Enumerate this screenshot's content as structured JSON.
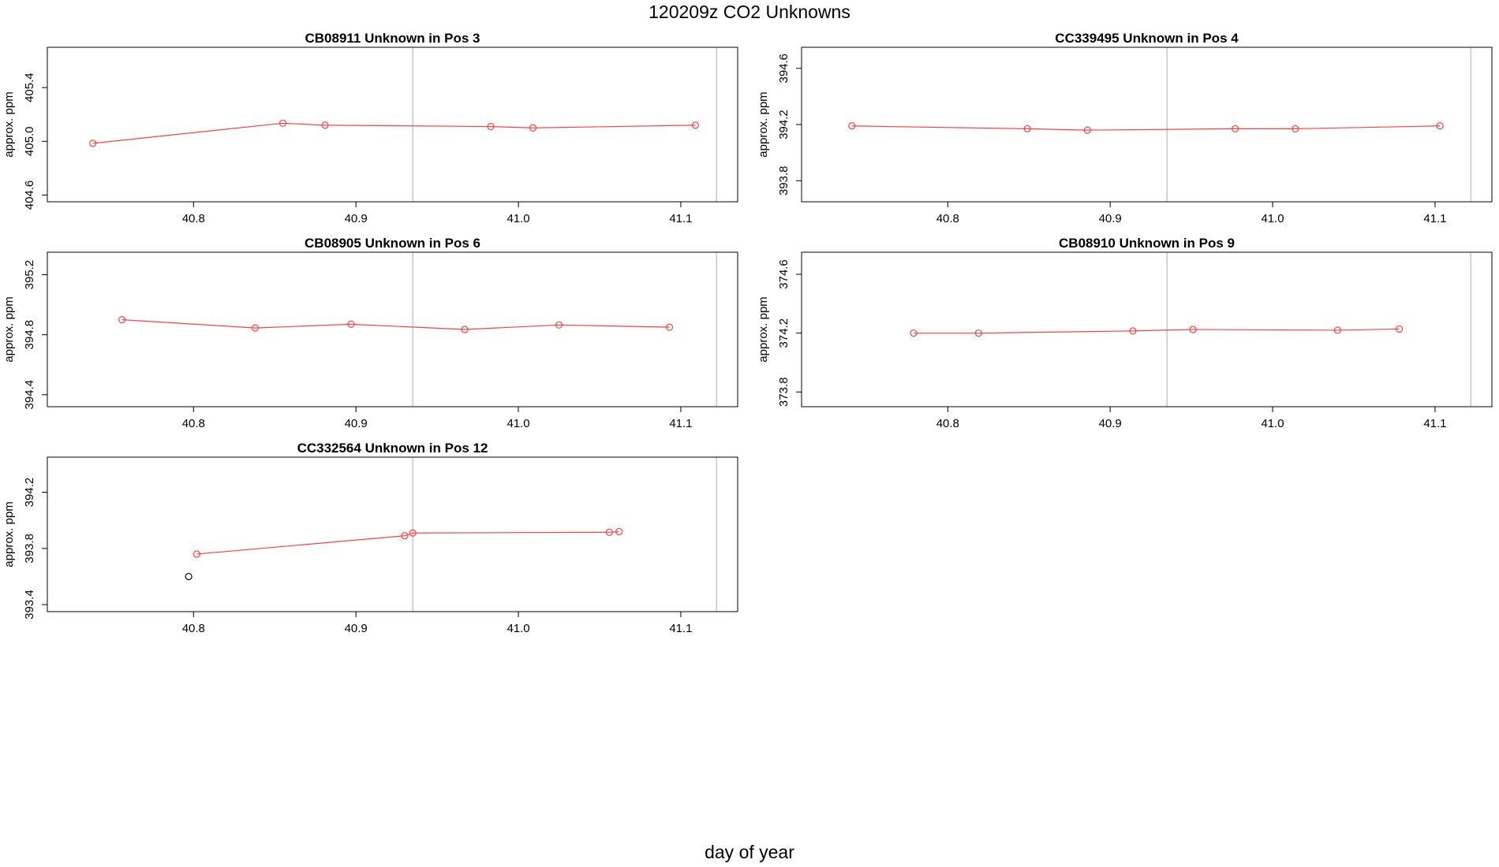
{
  "figure": {
    "title": "120209z  CO2 Unknowns",
    "xlabel": "day of year"
  },
  "chart_data": [
    {
      "type": "line",
      "title": "CB08911    Unknown in Pos 3",
      "ylabel": "approx. ppm",
      "xlim": [
        40.71,
        41.135
      ],
      "ylim": [
        404.55,
        405.7
      ],
      "xticks": [
        40.8,
        40.9,
        41.0,
        41.1
      ],
      "xtick_labels": [
        "40.8",
        "40.9",
        "41.0",
        "41.1"
      ],
      "yticks": [
        404.6,
        405.0,
        405.4
      ],
      "ytick_labels": [
        "404.6",
        "405.0",
        "405.4"
      ],
      "vlines": [
        40.935,
        41.122
      ],
      "series": [
        {
          "color": "#ff4040",
          "x": [
            40.738,
            40.855,
            40.881,
            40.983,
            41.009,
            41.109
          ],
          "y": [
            404.985,
            405.135,
            405.12,
            405.11,
            405.1,
            405.12
          ]
        }
      ]
    },
    {
      "type": "line",
      "title": "CC339495    Unknown in Pos 4",
      "ylabel": "approx. ppm",
      "xlim": [
        40.71,
        41.135
      ],
      "ylim": [
        393.65,
        394.75
      ],
      "xticks": [
        40.8,
        40.9,
        41.0,
        41.1
      ],
      "xtick_labels": [
        "40.8",
        "40.9",
        "41.0",
        "41.1"
      ],
      "yticks": [
        393.8,
        394.2,
        394.6
      ],
      "ytick_labels": [
        "393.8",
        "394.2",
        "394.6"
      ],
      "vlines": [
        40.935,
        41.122
      ],
      "series": [
        {
          "color": "#ff4040",
          "x": [
            40.741,
            40.849,
            40.886,
            40.977,
            41.014,
            41.103
          ],
          "y": [
            394.19,
            394.17,
            394.16,
            394.17,
            394.17,
            394.19
          ]
        }
      ]
    },
    {
      "type": "line",
      "title": "CB08905    Unknown in Pos 6",
      "ylabel": "approx. ppm",
      "xlim": [
        40.71,
        41.135
      ],
      "ylim": [
        394.32,
        395.35
      ],
      "xticks": [
        40.8,
        40.9,
        41.0,
        41.1
      ],
      "xtick_labels": [
        "40.8",
        "40.9",
        "41.0",
        "41.1"
      ],
      "yticks": [
        394.4,
        394.8,
        395.2
      ],
      "ytick_labels": [
        "394.4",
        "394.8",
        "395.2"
      ],
      "vlines": [
        40.935,
        41.122
      ],
      "series": [
        {
          "color": "#ff4040",
          "x": [
            40.756,
            40.838,
            40.897,
            40.967,
            41.025,
            41.093
          ],
          "y": [
            394.9,
            394.845,
            394.87,
            394.835,
            394.865,
            394.85
          ]
        }
      ]
    },
    {
      "type": "line",
      "title": "CB08910    Unknown in Pos 9",
      "ylabel": "approx. ppm",
      "xlim": [
        40.71,
        41.135
      ],
      "ylim": [
        373.7,
        374.75
      ],
      "xticks": [
        40.8,
        40.9,
        41.0,
        41.1
      ],
      "xtick_labels": [
        "40.8",
        "40.9",
        "41.0",
        "41.1"
      ],
      "yticks": [
        373.8,
        374.2,
        374.6
      ],
      "ytick_labels": [
        "373.8",
        "374.2",
        "374.6"
      ],
      "vlines": [
        40.935,
        41.122
      ],
      "series": [
        {
          "color": "#ff4040",
          "x": [
            40.779,
            40.819,
            40.914,
            40.951,
            41.04,
            41.078
          ],
          "y": [
            374.2,
            374.2,
            374.215,
            374.225,
            374.22,
            374.228
          ]
        }
      ]
    },
    {
      "type": "line",
      "title": "CC332564    Unknown in Pos 12",
      "ylabel": "approx. ppm",
      "xlim": [
        40.71,
        41.135
      ],
      "ylim": [
        393.35,
        394.45
      ],
      "xticks": [
        40.8,
        40.9,
        41.0,
        41.1
      ],
      "xtick_labels": [
        "40.8",
        "40.9",
        "41.0",
        "41.1"
      ],
      "yticks": [
        393.4,
        393.8,
        394.2
      ],
      "ytick_labels": [
        "393.4",
        "393.8",
        "394.2"
      ],
      "vlines": [
        40.935,
        41.122
      ],
      "series": [
        {
          "color": "#ff4040",
          "x": [
            40.802,
            40.93,
            40.935,
            41.056,
            41.062
          ],
          "y": [
            393.76,
            393.89,
            393.91,
            393.915,
            393.92
          ]
        },
        {
          "color": "#000000",
          "points_only": true,
          "x": [
            40.797
          ],
          "y": [
            393.6
          ]
        }
      ]
    }
  ]
}
